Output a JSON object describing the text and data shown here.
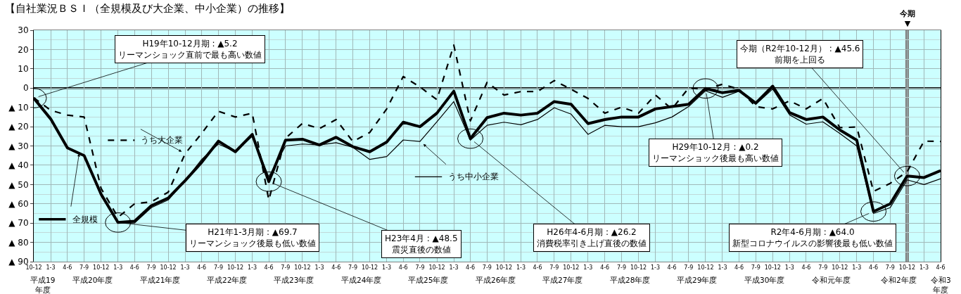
{
  "chart_data": {
    "type": "line",
    "title": "【自社業況ＢＳＩ（全規模及び大企業、中小企業）の推移】",
    "x": [
      "2007-10",
      "2008-01",
      "2008-04",
      "2008-07",
      "2008-10",
      "2009-01",
      "2009-04",
      "2009-07",
      "2009-10",
      "2010-01",
      "2010-04",
      "2010-07",
      "2010-10",
      "2011-01",
      "2011-04",
      "2011-07",
      "2011-10",
      "2012-01",
      "2012-04",
      "2012-07",
      "2012-10",
      "2013-01",
      "2013-04",
      "2013-07",
      "2013-10",
      "2014-01",
      "2014-04",
      "2014-07",
      "2014-10",
      "2015-01",
      "2015-04",
      "2015-07",
      "2015-10",
      "2016-01",
      "2016-04",
      "2016-07",
      "2016-10",
      "2017-01",
      "2017-04",
      "2017-07",
      "2017-10",
      "2018-01",
      "2018-04",
      "2018-07",
      "2018-10",
      "2019-01",
      "2019-04",
      "2019-07",
      "2019-10",
      "2020-01",
      "2020-04",
      "2020-07",
      "2020-10",
      "2021-01",
      "2021-04"
    ],
    "xlim": [
      "2007-10",
      "2021-04"
    ],
    "xticks": [
      {
        "value": "2007-10",
        "label": "10-12"
      },
      {
        "value": "2008-01",
        "label": "1-3"
      },
      {
        "value": "2008-04",
        "label": "4-6"
      },
      {
        "value": "2008-07",
        "label": "7-9"
      },
      {
        "value": "2008-10",
        "label": "10-12"
      },
      {
        "value": "2009-01",
        "label": "1-3"
      },
      {
        "value": "2009-04",
        "label": "4-6"
      },
      {
        "value": "2009-07",
        "label": "7-9"
      },
      {
        "value": "2009-10",
        "label": "10-12"
      },
      {
        "value": "2010-01",
        "label": "1-3"
      },
      {
        "value": "2010-04",
        "label": "4-6"
      },
      {
        "value": "2010-07",
        "label": "7-9"
      },
      {
        "value": "2010-10",
        "label": "10-12"
      },
      {
        "value": "2011-01",
        "label": "1-3"
      },
      {
        "value": "2011-04",
        "label": "4-6"
      },
      {
        "value": "2011-07",
        "label": "7-9"
      },
      {
        "value": "2011-10",
        "label": "10-12"
      },
      {
        "value": "2012-01",
        "label": "1-3"
      },
      {
        "value": "2012-04",
        "label": "4-6"
      },
      {
        "value": "2012-07",
        "label": "7-9"
      },
      {
        "value": "2012-10",
        "label": "10-12"
      },
      {
        "value": "2013-01",
        "label": "1-3"
      },
      {
        "value": "2013-04",
        "label": "4-6"
      },
      {
        "value": "2013-07",
        "label": "7-9"
      },
      {
        "value": "2013-10",
        "label": "10-12"
      },
      {
        "value": "2014-01",
        "label": "1-3"
      },
      {
        "value": "2014-04",
        "label": "4-6"
      },
      {
        "value": "2014-07",
        "label": "7-9"
      },
      {
        "value": "2014-10",
        "label": "10-12"
      },
      {
        "value": "2015-01",
        "label": "1-3"
      },
      {
        "value": "2015-04",
        "label": "4-6"
      },
      {
        "value": "2015-07",
        "label": "7-9"
      },
      {
        "value": "2015-10",
        "label": "10-12"
      },
      {
        "value": "2016-01",
        "label": "1-3"
      },
      {
        "value": "2016-04",
        "label": "4-6"
      },
      {
        "value": "2016-07",
        "label": "7-9"
      },
      {
        "value": "2016-10",
        "label": "10-12"
      },
      {
        "value": "2017-01",
        "label": "1-3"
      },
      {
        "value": "2017-04",
        "label": "4-6"
      },
      {
        "value": "2017-07",
        "label": "7-9"
      },
      {
        "value": "2017-10",
        "label": "10-12"
      },
      {
        "value": "2018-01",
        "label": "1-3"
      },
      {
        "value": "2018-04",
        "label": "4-6"
      },
      {
        "value": "2018-07",
        "label": "7-9"
      },
      {
        "value": "2018-10",
        "label": "10-12"
      },
      {
        "value": "2019-01",
        "label": "1-3"
      },
      {
        "value": "2019-04",
        "label": "4-6"
      },
      {
        "value": "2019-07",
        "label": "7-9"
      },
      {
        "value": "2019-10",
        "label": "10-12"
      },
      {
        "value": "2020-01",
        "label": "1-3"
      },
      {
        "value": "2020-04",
        "label": "4-6"
      },
      {
        "value": "2020-07",
        "label": "7-9"
      },
      {
        "value": "2020-10",
        "label": "10-12"
      },
      {
        "value": "2021-01",
        "label": "1-3"
      },
      {
        "value": "2021-04",
        "label": "4-6"
      }
    ],
    "series": [
      {
        "name": "全規模",
        "color": "#000000",
        "line_style": "solid",
        "values": [
          -5.2,
          -16,
          -31,
          -35,
          -55,
          -69.7,
          -69,
          -61,
          -57,
          -48,
          -38.5,
          -27.5,
          -33,
          -24,
          -48.5,
          -27,
          -26.5,
          -29.5,
          -25.5,
          -30.4,
          -33,
          -28,
          -17.7,
          -20,
          -13,
          -1.6,
          -26.2,
          -15.3,
          -13,
          -14,
          -13,
          -7,
          -8.4,
          -18.4,
          -16.3,
          -15,
          -15,
          -10.8,
          -9.6,
          -8.4,
          -0.2,
          -2.4,
          -1.2,
          -7.8,
          1,
          -12.7,
          -16.3,
          -15,
          -21.7,
          -27,
          -64.0,
          -60,
          -45.6,
          -46.4,
          -42.8
        ]
      },
      {
        "name": "うち大企業",
        "color": "#000000",
        "line_style": "dashed",
        "values": [
          -5,
          -11.5,
          -14,
          -15,
          -52,
          -67,
          -60,
          -59,
          -54,
          -34,
          -23.5,
          -12,
          -15,
          -13,
          -58,
          -26,
          -18.3,
          -21,
          -16.3,
          -27.7,
          -23,
          -10.8,
          6,
          0.6,
          -6,
          22.3,
          -17,
          3,
          -3.6,
          -1.8,
          -1.8,
          3.9,
          -0.6,
          -5.4,
          -13,
          -9.9,
          -13,
          -3.6,
          -10.8,
          0,
          -0.6,
          2,
          -0.6,
          -9.6,
          -10.8,
          -6.6,
          -10.8,
          -5.4,
          -20.5,
          -20.2,
          -53.6,
          -49.4,
          -43.4,
          -27.5,
          -27.7
        ]
      },
      {
        "name": "うち中小企業",
        "color": "#000000",
        "line_style": "solid",
        "values": [
          -5,
          -16,
          -31,
          -35,
          -56,
          -70,
          -70,
          -62,
          -58,
          -48,
          -37,
          -29,
          -33,
          -25,
          -46,
          -30,
          -29,
          -29.5,
          -28.3,
          -30.7,
          -37,
          -35.5,
          -26.9,
          -27.7,
          -17.5,
          -7,
          -27,
          -19.3,
          -17.7,
          -19,
          -16.3,
          -10.2,
          -13.5,
          -24,
          -19.3,
          -20,
          -20,
          -18,
          -15,
          -9.6,
          -1.4,
          -4.8,
          -1.6,
          -8.4,
          -0.5,
          -13.9,
          -18.7,
          -17.5,
          -23.5,
          -30,
          -65,
          -62,
          -47.6,
          -50,
          -47
        ]
      }
    ],
    "ylim": [
      -90,
      30
    ],
    "yticks": [
      30,
      20,
      10,
      0,
      {
        "value": -10,
        "label": "▲ 10"
      },
      {
        "value": -20,
        "label": "▲ 20"
      },
      {
        "value": -30,
        "label": "▲ 30"
      },
      {
        "value": -40,
        "label": "▲ 40"
      },
      {
        "value": -50,
        "label": "▲ 50"
      },
      {
        "value": -60,
        "label": "▲ 60"
      },
      {
        "value": -70,
        "label": "▲ 70"
      },
      {
        "value": -80,
        "label": "▲ 80"
      },
      {
        "value": -90,
        "label": "▲ 90"
      }
    ],
    "grid": true,
    "legend": "left",
    "ref_lines": [
      {
        "axis": "y",
        "value": 0,
        "color": "#000000"
      },
      {
        "axis": "x",
        "value": "2020-10",
        "label": "今期\n▼",
        "color": "#808080"
      }
    ],
    "annotations": [
      "平成19\n年度",
      "平成20年度",
      "平成21年度",
      "平成22年度",
      "平成23年度",
      "平成24年度",
      "平成25年度",
      "平成26年度",
      "平成27年度",
      "平成28年度",
      "平成29年度",
      "平成30年度",
      "令和元年度",
      "令和2年度",
      "令和3\n年度",
      {
        "text": "H19年10-12月期 : ▲5.2\nリーマンショック直前で最も高い数値",
        "x": "2007-10",
        "y": -5.2
      },
      {
        "text": "H21年1-3月期 : ▲69.7\nリーマンショック後最も低い数値",
        "x": "2009-01",
        "y": -69.7
      },
      {
        "text": "H23年4月 : ▲48.5\n震災直後の数値",
        "x": "2011-04",
        "y": -48.5
      },
      {
        "text": "H26年4-6月期 : ▲26.2\n消費税率引き上げ直後の数値",
        "x": "2014-04",
        "y": -26.2
      },
      {
        "text": "H29年10-12月 : ▲0.2\nリーマンショック後最も高い数値",
        "x": "2017-10",
        "y": -0.2
      },
      {
        "text": "今期（R2年10-12月） : ▲45.6\n前期を上回る",
        "x": "2020-10",
        "y": -45.6
      },
      {
        "text": "R2年4-6月期 : ▲64.0\n新型コロナウイルスの影響後最も低い数値",
        "x": "2020-04",
        "y": -64.0
      }
    ]
  }
}
